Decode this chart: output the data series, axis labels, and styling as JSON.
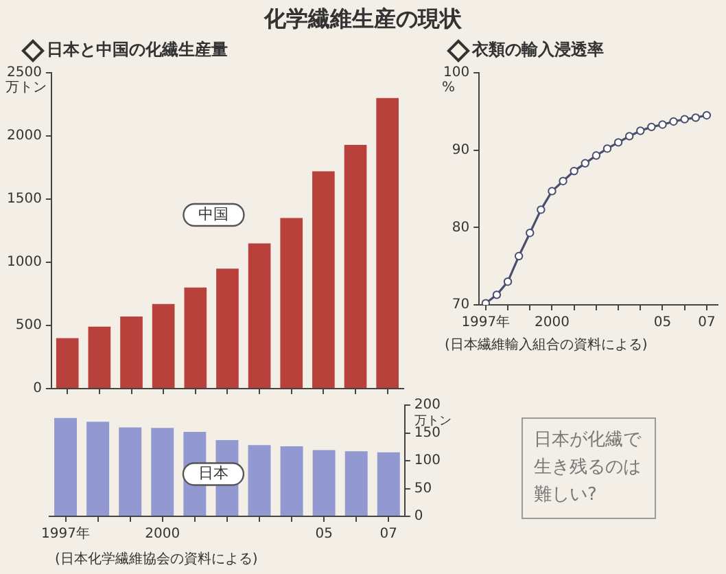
{
  "chart_data": [
    {
      "type": "bar",
      "title": "化学繊維生産の現状",
      "subtitle": "日本と中国の化繊生産量",
      "ylabel": "万トン",
      "categories": [
        null,
        null,
        null,
        null,
        null,
        null,
        null,
        null,
        null,
        null,
        null
      ],
      "series": [
        {
          "name": "中国",
          "color": "#b8413b",
          "values": [
            400,
            490,
            570,
            670,
            800,
            950,
            1150,
            1350,
            1720,
            1930,
            2300
          ]
        }
      ],
      "ylim": [
        0,
        2500
      ],
      "yticks": [
        0,
        500,
        1000,
        1500,
        2000,
        2500
      ],
      "grid": false,
      "legend": false,
      "tick_labels": "y"
    },
    {
      "type": "bar",
      "y2label": "万トン",
      "annotations": [
        "(日本化学繊維協会の資料による)"
      ],
      "categories": [
        "1997年",
        null,
        null,
        "2000",
        null,
        null,
        null,
        null,
        "05",
        null,
        "07"
      ],
      "series": [
        {
          "name": "日本",
          "color": "#9298d0",
          "axis": "y2",
          "values": [
            177,
            170,
            160,
            159,
            152,
            137,
            128,
            126,
            119,
            117,
            115
          ]
        }
      ],
      "y2lim": [
        0,
        200
      ],
      "y2ticks": [
        0,
        50,
        100,
        150,
        200
      ],
      "grid": false,
      "legend": false
    },
    {
      "type": "line",
      "subtitle": "衣類の輸入浸透率",
      "ylabel": "%",
      "annotations": [
        "(日本繊維輸入組合の資料による)",
        "日本が化繊で生き残るのは難しい?"
      ],
      "x": [
        1997,
        1997.5,
        1998,
        1998.5,
        1999,
        1999.5,
        2000,
        2000.5,
        2001,
        2001.5,
        2002,
        2002.5,
        2003,
        2003.5,
        2004,
        2004.5,
        2005,
        2005.5,
        2006,
        2006.5,
        2007
      ],
      "series": [
        {
          "color": "#4a4e6e",
          "values": [
            70.2,
            71.3,
            73,
            76.3,
            79.3,
            82.3,
            84.7,
            86,
            87.3,
            88.3,
            89.3,
            90.2,
            91,
            91.8,
            92.5,
            93,
            93.3,
            93.7,
            94,
            94.2,
            94.5
          ]
        }
      ],
      "xlim": [
        1996.7,
        2007.5
      ],
      "xticks": [
        {
          "value": 1997,
          "label": "1997年"
        },
        {
          "value": 1998,
          "label": null
        },
        {
          "value": 1999,
          "label": null
        },
        2000,
        {
          "value": 2001,
          "label": null
        },
        {
          "value": 2002,
          "label": null
        },
        {
          "value": 2003,
          "label": null
        },
        {
          "value": 2004,
          "label": null
        },
        {
          "value": 2005,
          "label": "05"
        },
        {
          "value": 2006,
          "label": null
        },
        {
          "value": 2007,
          "label": "07"
        }
      ],
      "ylim": [
        70,
        100
      ],
      "yticks": [
        70,
        80,
        90,
        100
      ],
      "grid": false,
      "legend": false,
      "marker": "circle",
      "line_style": "solid"
    }
  ]
}
